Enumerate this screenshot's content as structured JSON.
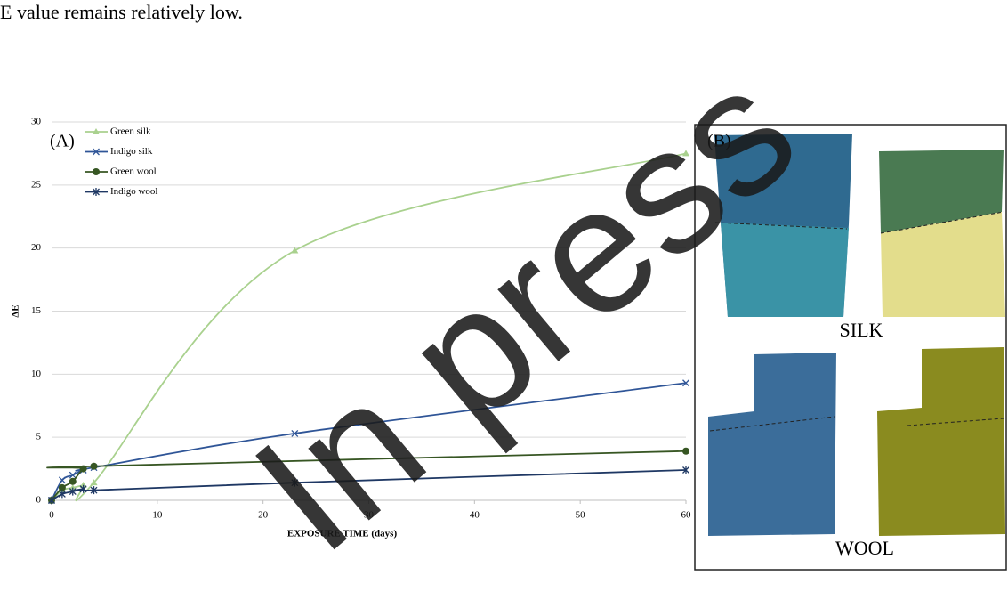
{
  "text": "E value remains relatively low.",
  "watermark": "In press",
  "chart_data": {
    "type": "line",
    "panel_label": "(A)",
    "x_label": "EXPOSURE TIME (days)",
    "y_label": "ΔE",
    "xlim": [
      0,
      60
    ],
    "xticks": [
      0,
      10,
      20,
      30,
      40,
      50,
      60
    ],
    "ylim": [
      0,
      30
    ],
    "yticks": [
      0,
      5,
      10,
      15,
      20,
      25,
      30
    ],
    "grid": true,
    "legend": "top-left",
    "smooth": true,
    "series": [
      {
        "name": "Green silk",
        "color": "#a9d18e",
        "marker": "triangle",
        "x": [
          0,
          1,
          2,
          3,
          4,
          23,
          60
        ],
        "values": [
          0,
          0.8,
          1.0,
          1.2,
          1.4,
          19.8,
          27.5
        ]
      },
      {
        "name": "Indigo silk",
        "color": "#2f5597",
        "marker": "x",
        "x": [
          0,
          1,
          2,
          3,
          4,
          23,
          60
        ],
        "values": [
          0,
          1.6,
          2.0,
          2.4,
          2.6,
          5.3,
          9.3
        ]
      },
      {
        "name": "Green wool",
        "color": "#375623",
        "marker": "circle",
        "x": [
          0,
          1,
          2,
          3,
          4,
          60
        ],
        "values": [
          0,
          1.0,
          1.5,
          2.5,
          2.7,
          3.9
        ]
      },
      {
        "name": "Indigo wool",
        "color": "#1f3864",
        "marker": "star",
        "x": [
          0,
          1,
          2,
          3,
          4,
          23,
          60
        ],
        "values": [
          0,
          0.5,
          0.7,
          0.9,
          0.8,
          1.4,
          2.4
        ]
      }
    ]
  },
  "panel_b": {
    "label": "(B)",
    "silk": "SILK",
    "wool": "WOOL"
  }
}
